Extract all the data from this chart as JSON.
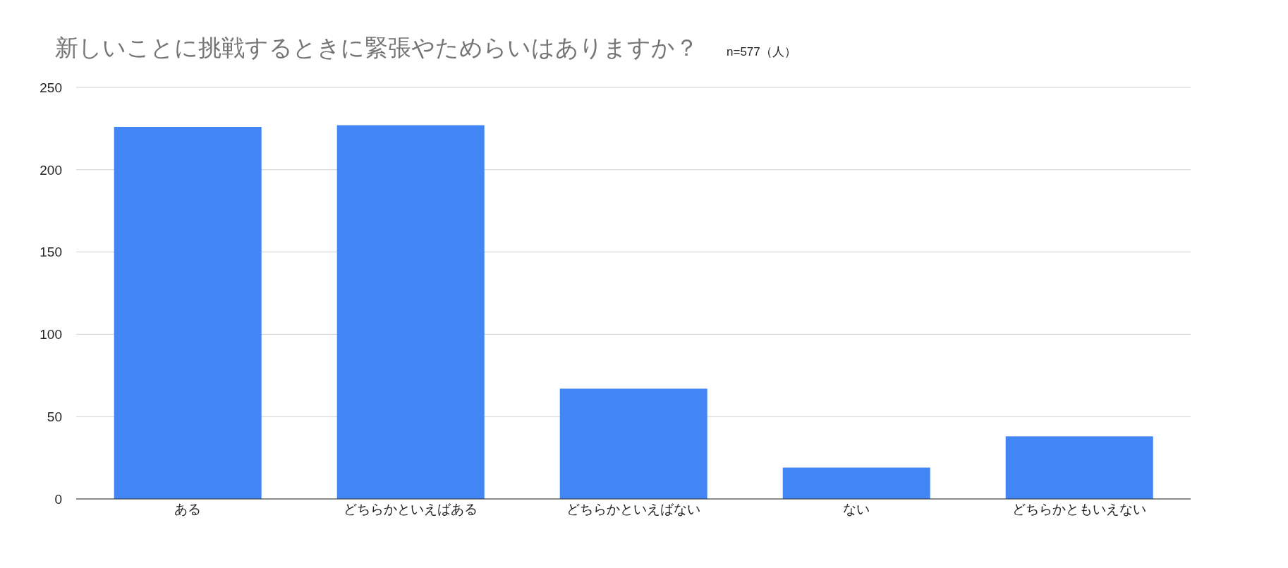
{
  "chart_data": {
    "type": "bar",
    "title": "新しいことに挑戦するときに緊張やためらいはありますか？",
    "subtitle": "n=577（人）",
    "categories": [
      "ある",
      "どちらかといえばある",
      "どちらかといえばない",
      "ない",
      "どちらかともいえない"
    ],
    "values": [
      226,
      227,
      67,
      19,
      38
    ],
    "color": "#4285f4",
    "ylim": [
      0,
      250
    ],
    "yticks": [
      0,
      50,
      100,
      150,
      200,
      250
    ],
    "grid": "y"
  }
}
